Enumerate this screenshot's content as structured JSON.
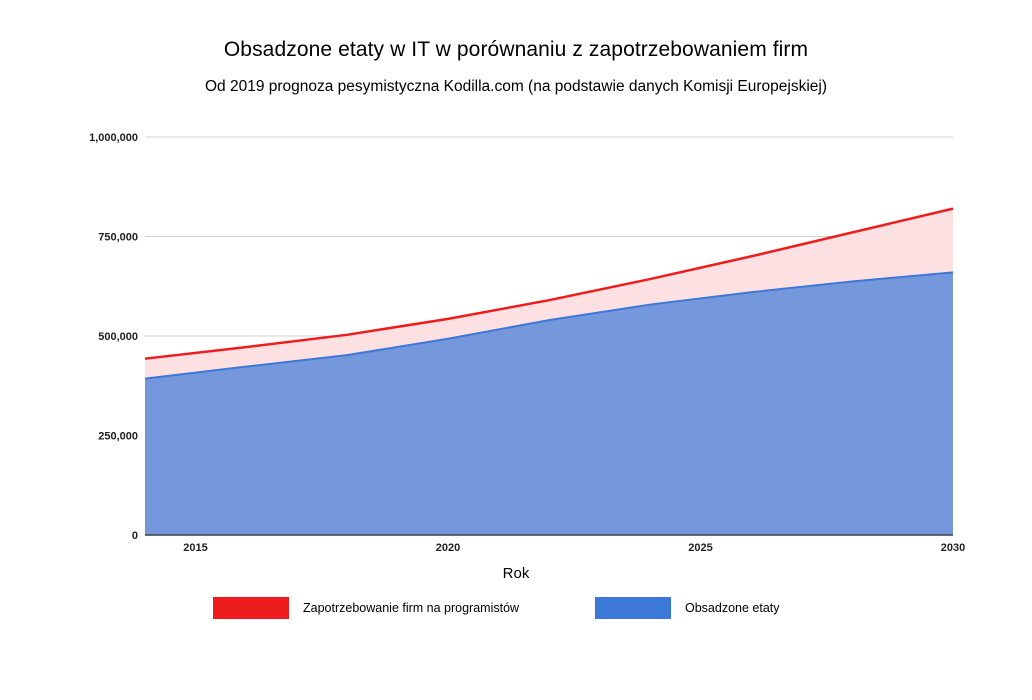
{
  "chart_data": {
    "type": "area",
    "title": "Obsadzone etaty w IT w porównaniu z zapotrzebowaniem firm",
    "subtitle": "Od 2019 prognoza pesymistyczna Kodilla.com (na podstawie danych Komisji Europejskiej)",
    "xlabel": "Rok",
    "ylabel": "",
    "xlim": [
      2014,
      2030
    ],
    "ylim": [
      0,
      1000000
    ],
    "x_ticks": [
      2015,
      2020,
      2025,
      2030
    ],
    "x_tick_labels": [
      "2015",
      "2020",
      "2025",
      "2030"
    ],
    "y_ticks": [
      0,
      250000,
      500000,
      750000,
      1000000
    ],
    "y_tick_labels": [
      "0",
      "250,000",
      "500,000",
      "750,000",
      "1,000,000"
    ],
    "x": [
      2014,
      2016,
      2018,
      2020,
      2022,
      2024,
      2026,
      2028,
      2030
    ],
    "series": [
      {
        "name": "Zapotrzebowanie firm na programistów",
        "color": "#ee1c1c",
        "fill": "#fde0e2",
        "values": [
          443000,
          472000,
          503000,
          543000,
          590000,
          643000,
          700000,
          760000,
          820000
        ]
      },
      {
        "name": "Obsadzone etaty",
        "color": "#3c78d8",
        "fill": "#7598dd",
        "values": [
          393000,
          423000,
          452000,
          493000,
          540000,
          579000,
          610000,
          637000,
          660000
        ]
      }
    ],
    "grid": true,
    "legend_position": "bottom"
  }
}
